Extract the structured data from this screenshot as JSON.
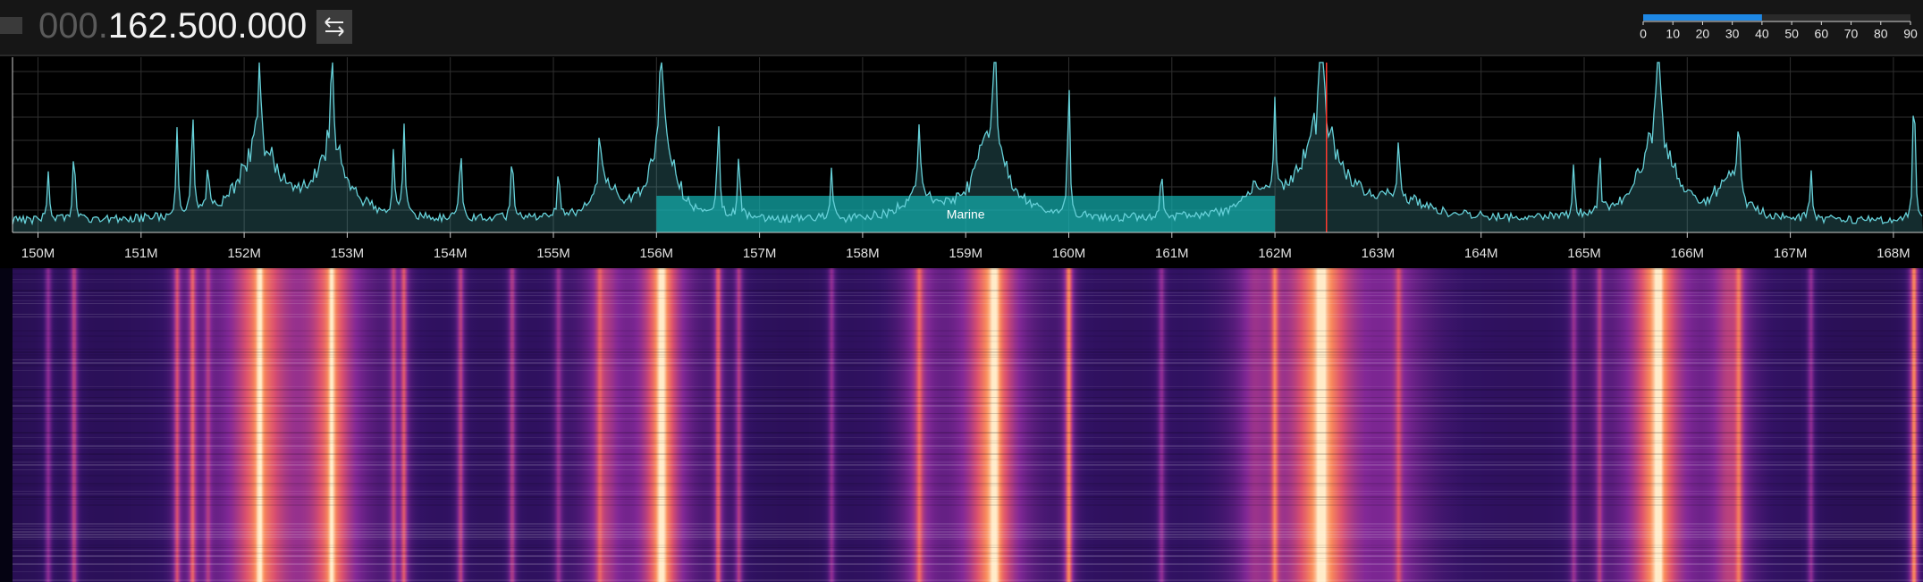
{
  "frequency": {
    "prefix": "000.",
    "value": "162.500.000"
  },
  "meter": {
    "value": 40,
    "ticks": [
      0,
      10,
      20,
      30,
      40,
      50,
      60,
      70,
      80,
      90
    ]
  },
  "spectrum": {
    "axis_labels": [
      "150M",
      "151M",
      "152M",
      "153M",
      "154M",
      "155M",
      "156M",
      "157M",
      "158M",
      "159M",
      "160M",
      "161M",
      "162M",
      "163M",
      "164M",
      "165M",
      "166M",
      "167M",
      "168M"
    ],
    "bands": [
      {
        "label": "Marine"
      }
    ]
  }
}
